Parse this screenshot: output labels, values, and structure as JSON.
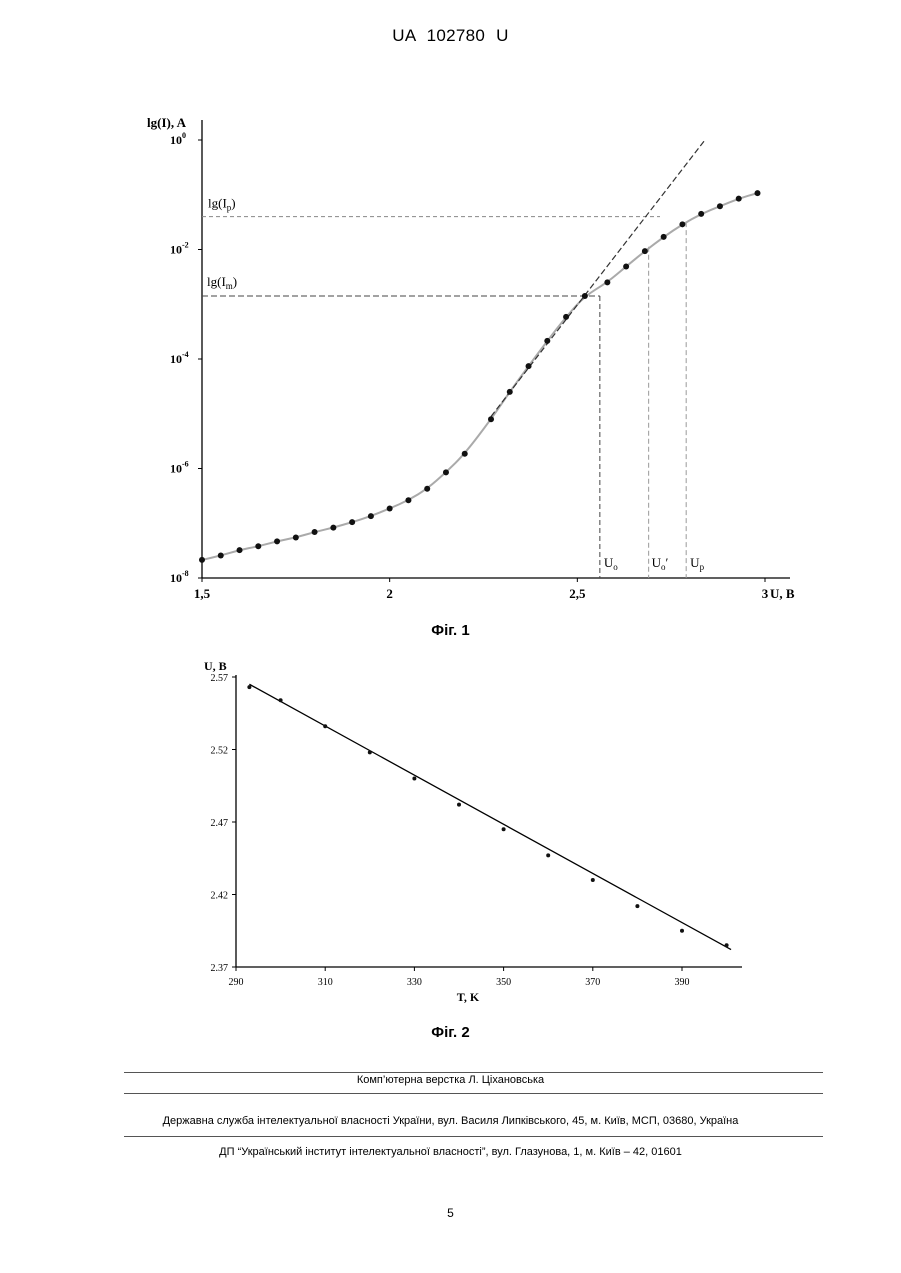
{
  "header": {
    "doc_code": "UA   102780   U"
  },
  "figure1": {
    "caption": "Фіг. 1",
    "y_axis_label": "lg(I), A",
    "x_axis_label": "U, B",
    "y_ticks": [
      {
        "exp": -8,
        "base": "10",
        "sup": "-8"
      },
      {
        "exp": -6,
        "base": "10",
        "sup": "-6"
      },
      {
        "exp": -4,
        "base": "10",
        "sup": "-4"
      },
      {
        "exp": -2,
        "base": "10",
        "sup": "-2"
      },
      {
        "exp": 0,
        "base": "10",
        "sup": "0"
      }
    ],
    "x_ticks": [
      {
        "value": 1.5,
        "label": "1,5"
      },
      {
        "value": 2.0,
        "label": "2"
      },
      {
        "value": 2.5,
        "label": "2,5"
      },
      {
        "value": 3.0,
        "label": "3"
      }
    ],
    "annotations": {
      "lg_ip": {
        "base": "lg(I",
        "sub": "p",
        "end": ")",
        "log": -1.4
      },
      "lg_im": {
        "base": "lg(I",
        "sub": "m",
        "end": ")",
        "log": -2.85
      },
      "u0": {
        "base": "U",
        "sub": "o",
        "end": "",
        "u": 2.56
      },
      "u0p": {
        "base": "U",
        "sub": "o",
        "end": "′",
        "u": 2.69
      },
      "up": {
        "base": "U",
        "sub": "p",
        "end": "",
        "u": 2.79
      }
    },
    "chart_data": {
      "type": "scatter",
      "x_range": [
        1.5,
        3.05
      ],
      "y_range_log10": [
        -8,
        0.1
      ],
      "y_scale": "log",
      "points": [
        [
          1.5,
          -7.67
        ],
        [
          1.55,
          -7.59
        ],
        [
          1.6,
          -7.49
        ],
        [
          1.65,
          -7.42
        ],
        [
          1.7,
          -7.33
        ],
        [
          1.75,
          -7.26
        ],
        [
          1.8,
          -7.16
        ],
        [
          1.85,
          -7.08
        ],
        [
          1.9,
          -6.98
        ],
        [
          1.95,
          -6.87
        ],
        [
          2.0,
          -6.73
        ],
        [
          2.05,
          -6.58
        ],
        [
          2.1,
          -6.37
        ],
        [
          2.15,
          -6.07
        ],
        [
          2.2,
          -5.73
        ],
        [
          2.27,
          -5.1
        ],
        [
          2.32,
          -4.6
        ],
        [
          2.37,
          -4.13
        ],
        [
          2.42,
          -3.67
        ],
        [
          2.47,
          -3.23
        ],
        [
          2.52,
          -2.85
        ],
        [
          2.58,
          -2.6
        ],
        [
          2.63,
          -2.31
        ],
        [
          2.68,
          -2.03
        ],
        [
          2.73,
          -1.77
        ],
        [
          2.78,
          -1.54
        ],
        [
          2.83,
          -1.35
        ],
        [
          2.88,
          -1.21
        ],
        [
          2.93,
          -1.07
        ],
        [
          2.98,
          -0.97
        ]
      ],
      "tangent_line": [
        [
          2.27,
          -5.05
        ],
        [
          2.84,
          0.0
        ]
      ]
    }
  },
  "figure2": {
    "caption": "Фіг. 2",
    "y_axis_label": "U, B",
    "x_axis_label": "T, K",
    "y_ticks": [
      "2.37",
      "2.42",
      "2.47",
      "2.52",
      "2.57"
    ],
    "x_ticks": [
      "290",
      "310",
      "330",
      "350",
      "370",
      "390"
    ],
    "chart_data": {
      "type": "scatter",
      "x_range": [
        290,
        403
      ],
      "y_range": [
        2.37,
        2.57
      ],
      "points": [
        [
          293,
          2.563
        ],
        [
          300,
          2.554
        ],
        [
          310,
          2.536
        ],
        [
          320,
          2.518
        ],
        [
          330,
          2.5
        ],
        [
          340,
          2.482
        ],
        [
          350,
          2.465
        ],
        [
          360,
          2.447
        ],
        [
          370,
          2.43
        ],
        [
          380,
          2.412
        ],
        [
          390,
          2.395
        ],
        [
          400,
          2.385
        ]
      ],
      "fit_line": [
        [
          293,
          2.565
        ],
        [
          401,
          2.382
        ]
      ]
    }
  },
  "footer": {
    "line1": "Комп’ютерна верстка Л. Ціхановська",
    "line2": "Державна служба інтелектуальної власності України, вул. Василя Липківського, 45, м. Київ, МСП, 03680, Україна",
    "line3": "ДП “Український інститут інтелектуальної власності”, вул. Глазунова, 1, м. Київ – 42, 01601",
    "page_number": "5"
  }
}
